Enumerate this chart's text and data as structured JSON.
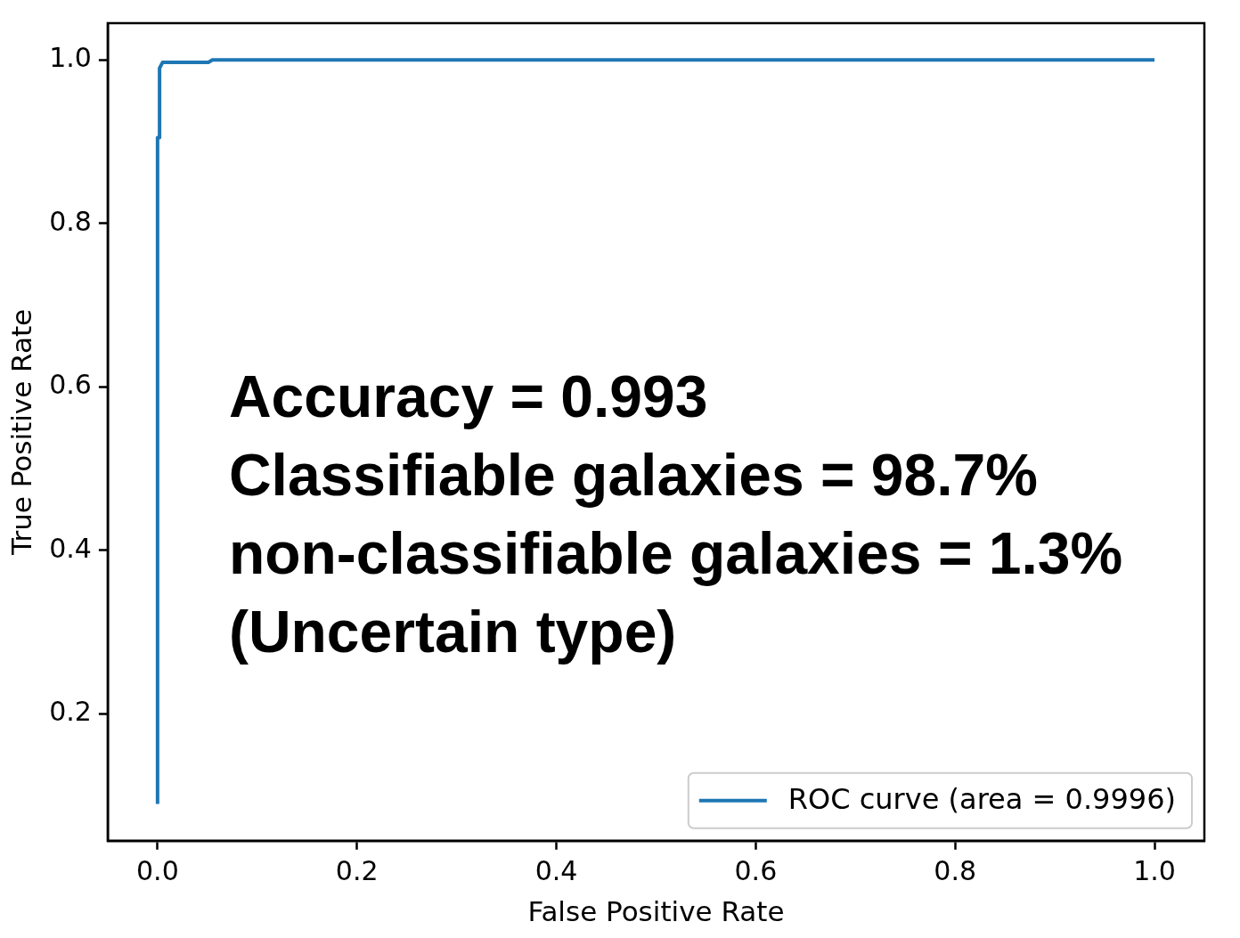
{
  "chart_data": {
    "type": "line",
    "xlabel": "False Positive Rate",
    "ylabel": "True Positive Rate",
    "x": [
      0,
      0,
      0.002,
      0.002,
      0.005,
      0.051,
      0.055,
      1.0
    ],
    "series": [
      {
        "name": "ROC curve (area = 0.9996)",
        "color": "#1f77b4",
        "values": [
          0.09,
          0.905,
          0.905,
          0.99,
          0.997,
          0.997,
          1.0,
          1.0
        ]
      }
    ],
    "xlim": [
      -0.05,
      1.05
    ],
    "xticks": [
      {
        "value": 0,
        "label": "0.0"
      },
      0.2,
      0.4,
      0.6,
      0.8,
      {
        "value": 1,
        "label": "1.0"
      }
    ],
    "ylim": [
      0.045,
      1.045
    ],
    "yticks": [
      0.2,
      0.4,
      0.6,
      0.8,
      {
        "value": 1,
        "label": "1.0"
      }
    ],
    "grid": false,
    "legend": "bottom right",
    "marker": "none",
    "line_style": "solid",
    "annotations": [
      "Accuracy = 0.993",
      "Classifiable galaxies = 98.7%",
      "non-classifiable galaxies = 1.3%",
      "(Uncertain type)"
    ]
  }
}
